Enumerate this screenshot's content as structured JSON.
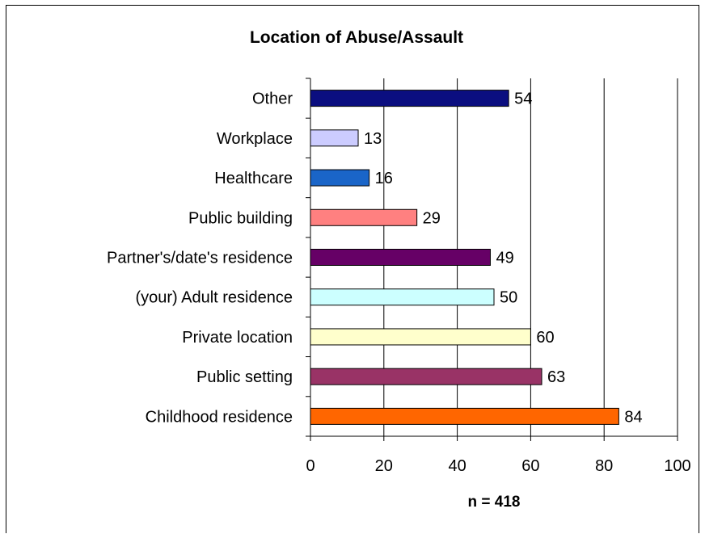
{
  "chart_data": {
    "type": "bar",
    "orientation": "horizontal",
    "title": "Location of Abuse/Assault",
    "xlabel": "n = 418",
    "ylabel": "",
    "xlim": [
      0,
      100
    ],
    "x_ticks": [
      0,
      20,
      40,
      60,
      80,
      100
    ],
    "grid": "vertical major gridlines",
    "legend": "none",
    "categories": [
      "Other",
      "Workplace",
      "Healthcare",
      "Public building",
      "Partner's/date's residence",
      "(your) Adult residence",
      "Private location",
      "Public setting",
      "Childhood residence"
    ],
    "values": [
      54,
      13,
      16,
      29,
      49,
      50,
      60,
      63,
      84
    ],
    "colors": [
      "#0B0E80",
      "#CCCCFF",
      "#1A65C8",
      "#FF8080",
      "#660066",
      "#CCFFFF",
      "#FFFFCC",
      "#993366",
      "#FF6600"
    ]
  }
}
